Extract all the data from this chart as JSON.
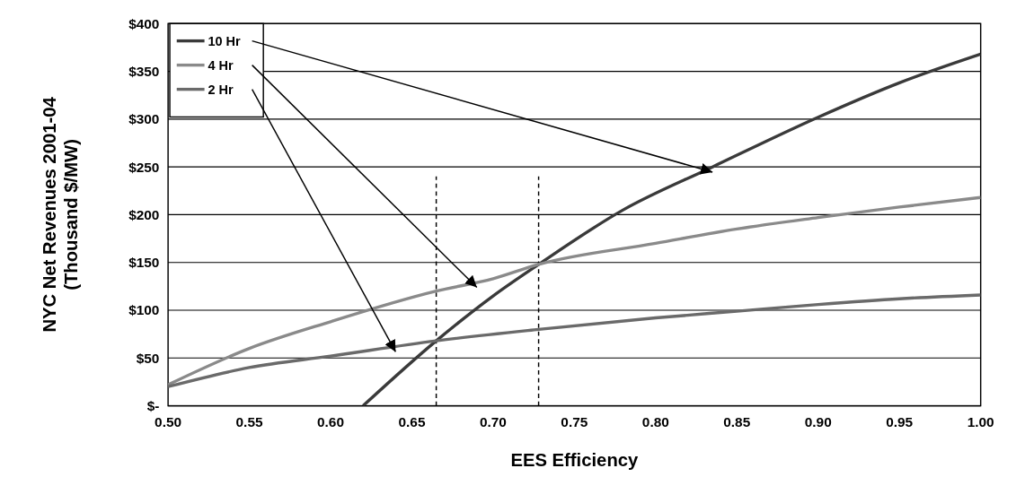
{
  "chart_data": {
    "type": "line",
    "xlabel": "EES Efficiency",
    "ylabel": "NYC Net Revenues 2001-04\n(Thousand $/MW)",
    "xlim": [
      0.5,
      1.0
    ],
    "ylim": [
      0,
      400
    ],
    "xticks": [
      {
        "value": 0.5,
        "label": "0.50"
      },
      {
        "value": 0.55,
        "label": "0.55"
      },
      {
        "value": 0.6,
        "label": "0.60"
      },
      {
        "value": 0.65,
        "label": "0.65"
      },
      {
        "value": 0.7,
        "label": "0.70"
      },
      {
        "value": 0.75,
        "label": "0.75"
      },
      {
        "value": 0.8,
        "label": "0.80"
      },
      {
        "value": 0.85,
        "label": "0.85"
      },
      {
        "value": 0.9,
        "label": "0.90"
      },
      {
        "value": 0.95,
        "label": "0.95"
      },
      {
        "value": 1.0,
        "label": "1.00"
      }
    ],
    "yticks": [
      {
        "value": 0,
        "label": "$-"
      },
      {
        "value": 50,
        "label": "$50"
      },
      {
        "value": 100,
        "label": "$100"
      },
      {
        "value": 150,
        "label": "$150"
      },
      {
        "value": 200,
        "label": "$200"
      },
      {
        "value": 250,
        "label": "$250"
      },
      {
        "value": 300,
        "label": "$300"
      },
      {
        "value": 350,
        "label": "$350"
      },
      {
        "value": 400,
        "label": "$400"
      }
    ],
    "grid": "y",
    "legend": "top left",
    "marker": "none",
    "line_style": "solid",
    "series": [
      {
        "name": "10 Hr",
        "color": "#3a3a3a",
        "x": [
          0.62,
          0.665,
          0.7,
          0.728,
          0.78,
          0.835,
          0.9,
          0.95,
          1.0
        ],
        "values": [
          0,
          68,
          115,
          148,
          205,
          250,
          302,
          338,
          368
        ]
      },
      {
        "name": "4 Hr",
        "color": "#8a8a8a",
        "x": [
          0.5,
          0.55,
          0.6,
          0.665,
          0.7,
          0.728,
          0.8,
          0.85,
          0.9,
          0.95,
          1.0
        ],
        "values": [
          22,
          60,
          88,
          120,
          133,
          148,
          170,
          185,
          197,
          208,
          218
        ]
      },
      {
        "name": "2 Hr",
        "color": "#6a6a6a",
        "x": [
          0.5,
          0.55,
          0.6,
          0.665,
          0.728,
          0.8,
          0.85,
          0.9,
          0.95,
          1.0
        ],
        "values": [
          20,
          40,
          52,
          68,
          80,
          92,
          99,
          106,
          112,
          116
        ]
      }
    ],
    "ref_lines": [
      {
        "axis": "x",
        "value": 0.665,
        "color": "#000000",
        "line_style": "dashed"
      },
      {
        "axis": "x",
        "value": 0.728,
        "color": "#000000",
        "line_style": "dashed"
      }
    ]
  }
}
